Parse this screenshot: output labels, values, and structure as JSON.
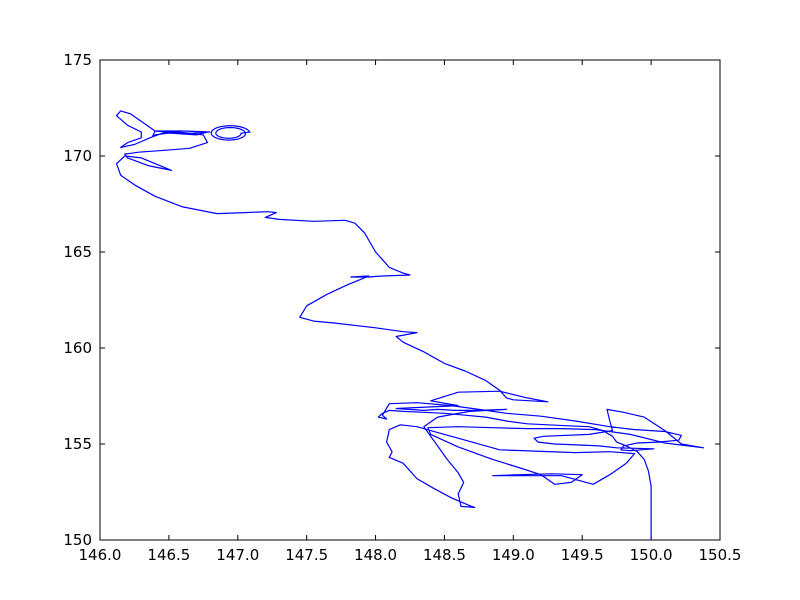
{
  "chart_data": {
    "type": "line",
    "title": "",
    "xlabel": "",
    "ylabel": "",
    "xlim": [
      146.0,
      150.5
    ],
    "ylim": [
      150,
      175
    ],
    "grid": false,
    "x_ticks": [
      "146.0",
      "146.5",
      "147.0",
      "147.5",
      "148.0",
      "148.5",
      "149.0",
      "149.5",
      "150.0",
      "150.5"
    ],
    "y_ticks": [
      "150",
      "155",
      "160",
      "165",
      "170",
      "175"
    ],
    "series": [
      {
        "color": "#0000ff",
        "points": [
          [
            150.0,
            150.0
          ],
          [
            150.0,
            152.8
          ],
          [
            149.98,
            153.6
          ],
          [
            149.95,
            154.2
          ],
          [
            149.9,
            154.6
          ],
          [
            149.82,
            154.9
          ],
          [
            149.75,
            155.1
          ],
          [
            149.72,
            155.4
          ],
          [
            149.65,
            155.7
          ],
          [
            149.55,
            155.9
          ],
          [
            149.4,
            155.95
          ],
          [
            149.25,
            156.0
          ],
          [
            149.1,
            156.05
          ],
          [
            148.95,
            156.2
          ],
          [
            148.8,
            156.4
          ],
          [
            148.65,
            156.5
          ],
          [
            148.5,
            156.6
          ],
          [
            148.35,
            156.65
          ],
          [
            148.2,
            156.7
          ],
          [
            148.1,
            156.75
          ],
          [
            148.05,
            156.6
          ],
          [
            148.02,
            156.4
          ],
          [
            148.08,
            156.3
          ],
          [
            148.05,
            156.5
          ],
          [
            148.1,
            157.1
          ],
          [
            148.3,
            157.15
          ],
          [
            148.55,
            157.0
          ],
          [
            148.75,
            156.8
          ],
          [
            148.95,
            156.6
          ],
          [
            149.2,
            156.45
          ],
          [
            149.45,
            156.2
          ],
          [
            149.7,
            155.9
          ],
          [
            149.88,
            155.75
          ],
          [
            150.1,
            155.65
          ],
          [
            150.22,
            155.45
          ],
          [
            150.2,
            155.2
          ],
          [
            150.05,
            155.1
          ],
          [
            149.9,
            155.05
          ],
          [
            149.8,
            154.9
          ],
          [
            149.78,
            154.7
          ],
          [
            149.85,
            154.65
          ],
          [
            150.02,
            154.75
          ],
          [
            149.75,
            154.8
          ],
          [
            149.62,
            154.9
          ],
          [
            149.48,
            154.95
          ],
          [
            149.3,
            155.0
          ],
          [
            149.18,
            155.1
          ],
          [
            149.15,
            155.3
          ],
          [
            149.22,
            155.4
          ],
          [
            149.55,
            155.5
          ],
          [
            149.72,
            155.7
          ],
          [
            149.7,
            156.2
          ],
          [
            149.68,
            156.8
          ],
          [
            149.8,
            156.65
          ],
          [
            149.95,
            156.4
          ],
          [
            150.1,
            155.7
          ],
          [
            150.22,
            155.0
          ],
          [
            150.38,
            154.8
          ],
          [
            150.1,
            155.05
          ],
          [
            149.85,
            155.5
          ],
          [
            149.6,
            155.75
          ],
          [
            149.35,
            155.8
          ],
          [
            149.1,
            155.8
          ],
          [
            148.85,
            155.85
          ],
          [
            148.6,
            155.9
          ],
          [
            148.38,
            155.85
          ],
          [
            148.4,
            155.5
          ],
          [
            148.6,
            154.85
          ],
          [
            148.85,
            154.2
          ],
          [
            149.05,
            153.75
          ],
          [
            149.2,
            153.4
          ],
          [
            149.3,
            152.9
          ],
          [
            149.42,
            153.0
          ],
          [
            149.5,
            153.4
          ],
          [
            149.28,
            153.45
          ],
          [
            149.05,
            153.4
          ],
          [
            148.85,
            153.35
          ],
          [
            149.35,
            153.35
          ],
          [
            149.58,
            152.9
          ],
          [
            149.7,
            153.4
          ],
          [
            149.82,
            154.0
          ],
          [
            149.88,
            154.5
          ],
          [
            149.7,
            154.6
          ],
          [
            149.45,
            154.55
          ],
          [
            148.9,
            154.7
          ],
          [
            148.6,
            155.3
          ],
          [
            148.5,
            155.5
          ],
          [
            148.4,
            155.7
          ],
          [
            148.3,
            155.9
          ],
          [
            148.18,
            156.0
          ],
          [
            148.1,
            155.75
          ],
          [
            148.08,
            155.1
          ],
          [
            148.12,
            154.6
          ],
          [
            148.1,
            154.3
          ],
          [
            148.2,
            154.0
          ],
          [
            148.3,
            153.2
          ],
          [
            148.42,
            152.7
          ],
          [
            148.55,
            152.2
          ],
          [
            148.68,
            151.8
          ],
          [
            148.72,
            151.7
          ],
          [
            148.62,
            151.75
          ],
          [
            148.6,
            152.4
          ],
          [
            148.64,
            153.0
          ],
          [
            148.6,
            153.5
          ],
          [
            148.52,
            154.2
          ],
          [
            148.4,
            155.4
          ],
          [
            148.35,
            155.9
          ],
          [
            148.45,
            156.4
          ],
          [
            148.68,
            156.7
          ],
          [
            148.95,
            156.8
          ],
          [
            148.75,
            156.75
          ],
          [
            148.58,
            156.75
          ],
          [
            148.45,
            156.8
          ],
          [
            148.35,
            156.75
          ],
          [
            148.15,
            156.85
          ],
          [
            148.6,
            157.0
          ],
          [
            148.4,
            157.25
          ],
          [
            148.6,
            157.7
          ],
          [
            148.9,
            157.75
          ],
          [
            149.1,
            157.4
          ],
          [
            149.25,
            157.2
          ],
          [
            149.0,
            157.3
          ],
          [
            148.95,
            157.4
          ],
          [
            148.9,
            157.8
          ],
          [
            148.8,
            158.3
          ],
          [
            148.65,
            158.8
          ],
          [
            148.5,
            159.2
          ],
          [
            148.35,
            159.8
          ],
          [
            148.2,
            160.3
          ],
          [
            148.15,
            160.6
          ],
          [
            148.3,
            160.8
          ],
          [
            148.2,
            160.85
          ],
          [
            148.0,
            161.05
          ],
          [
            147.7,
            161.3
          ],
          [
            147.55,
            161.4
          ],
          [
            147.45,
            161.6
          ],
          [
            147.5,
            162.2
          ],
          [
            147.65,
            162.8
          ],
          [
            147.8,
            163.3
          ],
          [
            147.9,
            163.6
          ],
          [
            147.95,
            163.75
          ],
          [
            147.82,
            163.7
          ],
          [
            147.95,
            163.7
          ],
          [
            148.05,
            163.75
          ],
          [
            148.25,
            163.8
          ],
          [
            148.2,
            163.9
          ],
          [
            148.1,
            164.2
          ],
          [
            148.0,
            165.0
          ],
          [
            147.92,
            166.0
          ],
          [
            147.85,
            166.5
          ],
          [
            147.78,
            166.65
          ],
          [
            147.55,
            166.6
          ],
          [
            147.3,
            166.7
          ],
          [
            147.2,
            166.8
          ],
          [
            147.28,
            167.05
          ],
          [
            147.22,
            167.1
          ],
          [
            147.05,
            167.05
          ],
          [
            146.85,
            167.0
          ],
          [
            146.6,
            167.35
          ],
          [
            146.4,
            167.9
          ],
          [
            146.25,
            168.5
          ],
          [
            146.15,
            169.0
          ],
          [
            146.12,
            169.6
          ],
          [
            146.18,
            170.0
          ],
          [
            146.3,
            169.9
          ],
          [
            146.52,
            169.25
          ],
          [
            146.35,
            169.5
          ],
          [
            146.2,
            169.9
          ],
          [
            146.18,
            170.1
          ],
          [
            146.28,
            170.2
          ],
          [
            146.48,
            170.3
          ],
          [
            146.65,
            170.4
          ],
          [
            146.78,
            170.7
          ],
          [
            146.75,
            171.1
          ],
          [
            146.5,
            171.3
          ],
          [
            146.38,
            171.0
          ],
          [
            146.4,
            171.1
          ],
          [
            146.5,
            171.2
          ],
          [
            146.7,
            171.1
          ],
          [
            146.78,
            171.25
          ],
          [
            146.62,
            171.15
          ],
          [
            146.4,
            171.3
          ],
          [
            146.3,
            171.8
          ],
          [
            146.22,
            172.2
          ],
          [
            146.15,
            172.35
          ],
          [
            146.12,
            172.1
          ],
          [
            146.2,
            171.6
          ],
          [
            146.3,
            171.25
          ],
          [
            146.3,
            170.95
          ],
          [
            146.2,
            170.7
          ],
          [
            146.15,
            170.45
          ],
          [
            146.25,
            170.6
          ],
          [
            146.38,
            171.0
          ],
          [
            146.4,
            171.3
          ],
          [
            146.6,
            171.3
          ],
          [
            146.8,
            171.25
          ]
        ],
        "loop": {
          "center": [
            146.94,
            171.18
          ],
          "rx": 0.15,
          "ry": 0.42,
          "turns": 14
        }
      }
    ]
  }
}
